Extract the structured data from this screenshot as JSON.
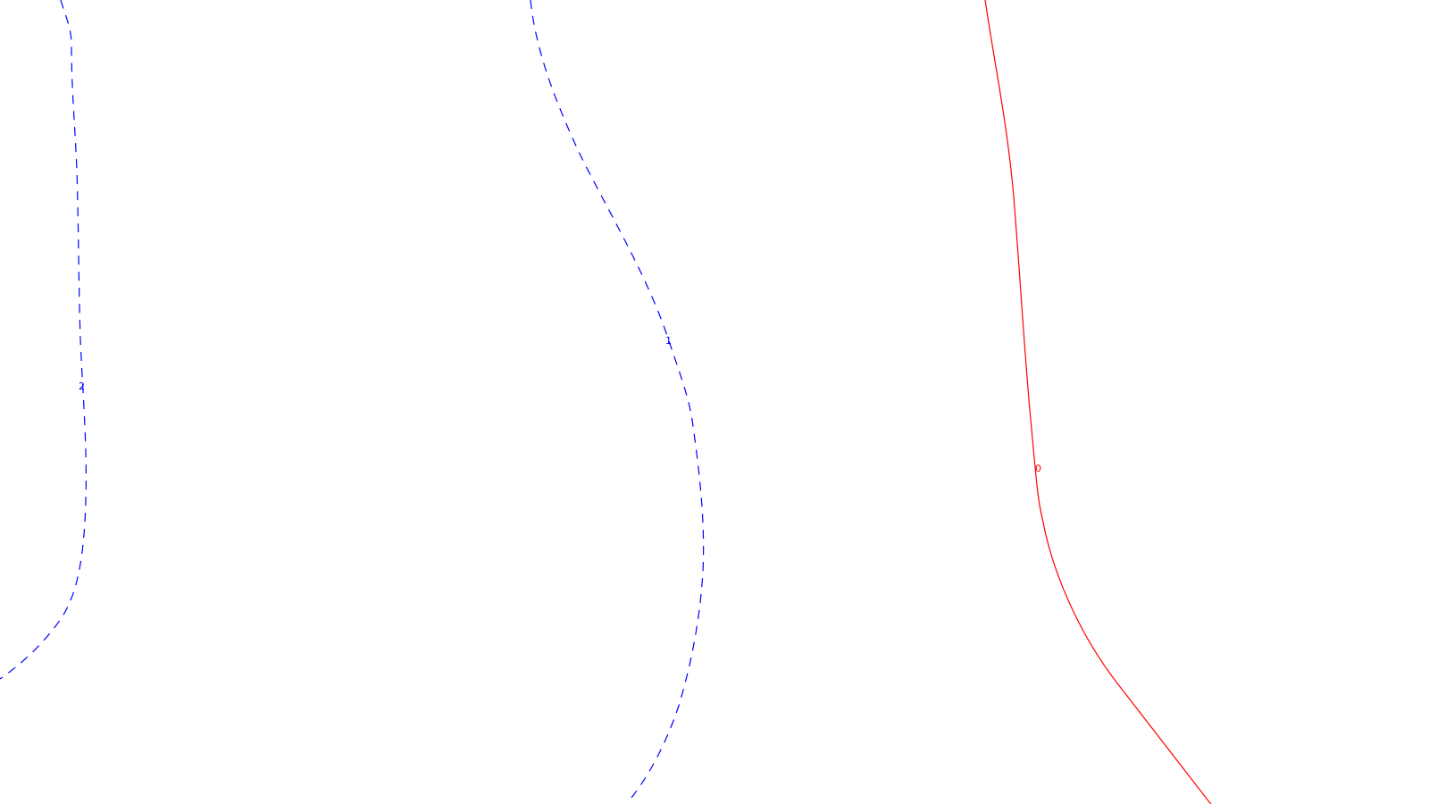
{
  "map": {
    "background": "#ffffff",
    "contours": [
      {
        "label": "2",
        "color": "#0000ff",
        "style": "dashed"
      },
      {
        "label": "1",
        "color": "#0000ff",
        "style": "dashed"
      },
      {
        "label": "0",
        "color": "#ff0000",
        "style": "solid"
      }
    ]
  }
}
